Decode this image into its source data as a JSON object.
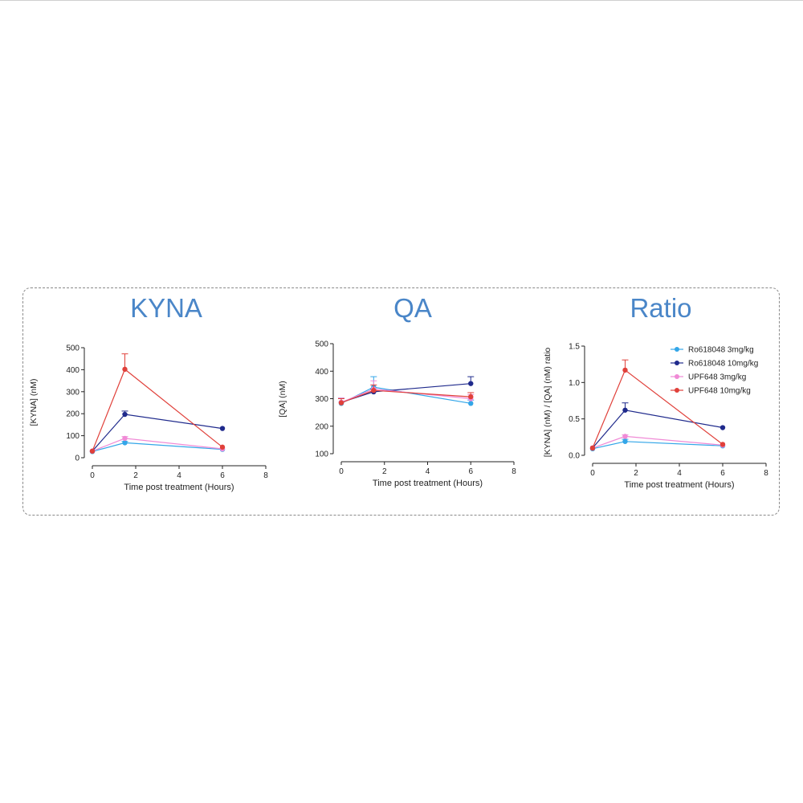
{
  "figure": {
    "border_color": "#8a8a8a"
  },
  "series_colors": {
    "Ro618048 3mg/kg": "#33a6e8",
    "Ro618048 10mg/kg": "#1f2a8c",
    "UPF648 3mg/kg": "#f08ad6",
    "UPF648 10mg/kg": "#e0403a"
  },
  "chart_data": [
    {
      "type": "line",
      "title": "KYNA",
      "xlabel": "Time post treatment (Hours)",
      "ylabel": "[KYNA] (nM)",
      "xlim": [
        0,
        8
      ],
      "ylim": [
        0,
        500
      ],
      "xticks": [
        "0",
        "2",
        "4",
        "6",
        "8"
      ],
      "yticks": [
        "0",
        "100",
        "200",
        "300",
        "400",
        "500"
      ],
      "grid": false,
      "series": [
        {
          "name": "Ro618048 3mg/kg",
          "x": [
            0,
            1.5,
            6
          ],
          "values": [
            28,
            68,
            38
          ],
          "error": [
            0,
            6,
            0
          ]
        },
        {
          "name": "Ro618048 10mg/kg",
          "x": [
            0,
            1.5,
            6
          ],
          "values": [
            30,
            197,
            133
          ],
          "error": [
            0,
            15,
            0
          ]
        },
        {
          "name": "UPF648 3mg/kg",
          "x": [
            0,
            1.5,
            6
          ],
          "values": [
            30,
            88,
            40
          ],
          "error": [
            0,
            8,
            0
          ]
        },
        {
          "name": "UPF648 10mg/kg",
          "x": [
            0,
            1.5,
            6
          ],
          "values": [
            30,
            402,
            48
          ],
          "error": [
            0,
            70,
            0
          ]
        }
      ]
    },
    {
      "type": "line",
      "title": "QA",
      "xlabel": "Time post treatment (Hours)",
      "ylabel": "[QA] (nM)",
      "xlim": [
        0,
        8
      ],
      "ylim": [
        100,
        500
      ],
      "xticks": [
        "0",
        "2",
        "4",
        "6",
        "8"
      ],
      "yticks": [
        "100",
        "200",
        "300",
        "400",
        "500"
      ],
      "grid": false,
      "series": [
        {
          "name": "Ro618048 3mg/kg",
          "x": [
            0,
            1.5,
            6
          ],
          "values": [
            283,
            342,
            283
          ],
          "error": [
            18,
            38,
            12
          ]
        },
        {
          "name": "Ro618048 10mg/kg",
          "x": [
            0,
            1.5,
            6
          ],
          "values": [
            287,
            325,
            355
          ],
          "error": [
            15,
            10,
            25
          ]
        },
        {
          "name": "UPF648 3mg/kg",
          "x": [
            0,
            1.5,
            6
          ],
          "values": [
            287,
            335,
            300
          ],
          "error": [
            15,
            30,
            15
          ]
        },
        {
          "name": "UPF648 10mg/kg",
          "x": [
            0,
            1.5,
            6
          ],
          "values": [
            285,
            330,
            307
          ],
          "error": [
            15,
            20,
            15
          ]
        }
      ]
    },
    {
      "type": "line",
      "title": "Ratio",
      "xlabel": "Time post treatment (Hours)",
      "ylabel": "[KYNA] (nM) / [QA] (nM) ratio",
      "xlim": [
        0,
        8
      ],
      "ylim": [
        0,
        1.5
      ],
      "xticks": [
        "0",
        "2",
        "4",
        "6",
        "8"
      ],
      "yticks": [
        "0.0",
        "0.5",
        "1.0",
        "1.5"
      ],
      "grid": false,
      "legend": "top-right",
      "series": [
        {
          "name": "Ro618048 3mg/kg",
          "x": [
            0,
            1.5,
            6
          ],
          "values": [
            0.09,
            0.19,
            0.13
          ],
          "error": [
            0,
            0.03,
            0
          ]
        },
        {
          "name": "Ro618048 10mg/kg",
          "x": [
            0,
            1.5,
            6
          ],
          "values": [
            0.1,
            0.62,
            0.38
          ],
          "error": [
            0,
            0.1,
            0
          ]
        },
        {
          "name": "UPF648 3mg/kg",
          "x": [
            0,
            1.5,
            6
          ],
          "values": [
            0.1,
            0.26,
            0.14
          ],
          "error": [
            0,
            0.02,
            0
          ]
        },
        {
          "name": "UPF648 10mg/kg",
          "x": [
            0,
            1.5,
            6
          ],
          "values": [
            0.1,
            1.17,
            0.15
          ],
          "error": [
            0,
            0.14,
            0
          ]
        }
      ]
    }
  ]
}
